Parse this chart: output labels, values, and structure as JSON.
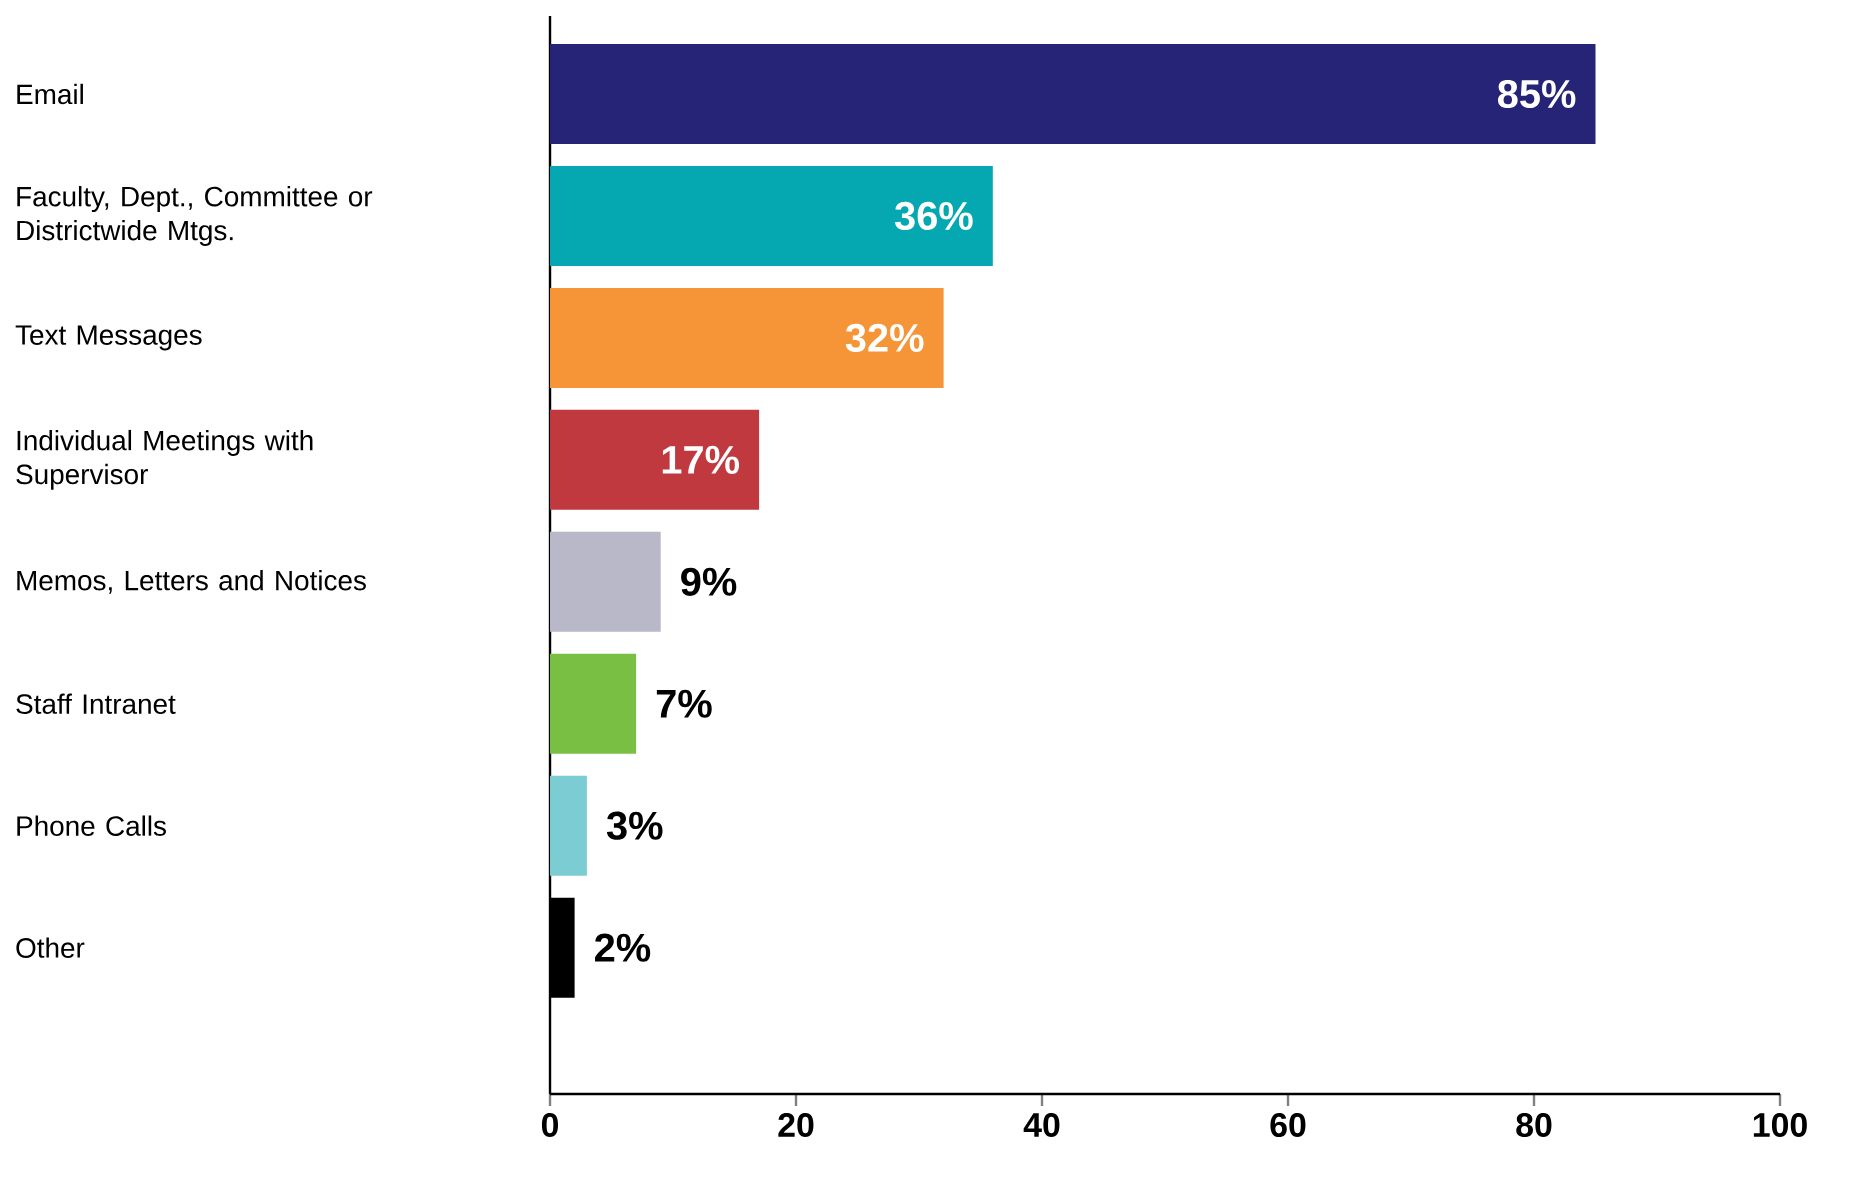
{
  "chart_data": {
    "type": "bar",
    "orientation": "horizontal",
    "categories": [
      "Email",
      "Faculty, Dept., Committee or Districtwide Mtgs.",
      "Text Messages",
      "Individual Meetings with Supervisor",
      "Memos, Letters and Notices",
      "Staff Intranet",
      "Phone Calls",
      "Other"
    ],
    "values": [
      85,
      36,
      32,
      17,
      9,
      7,
      3,
      2
    ],
    "colors": [
      "#262477",
      "#05a8b0",
      "#f59537",
      "#c0393f",
      "#b9b8c8",
      "#78bf44",
      "#7ccdd3",
      "#000000"
    ],
    "value_labels": [
      "85%",
      "36%",
      "32%",
      "17%",
      "9%",
      "7%",
      "3%",
      "2%"
    ],
    "xlim": [
      0,
      100
    ],
    "xticks": [
      0,
      20,
      40,
      60,
      80,
      100
    ],
    "grid": false
  }
}
